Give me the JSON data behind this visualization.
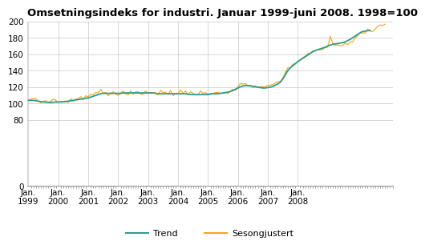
{
  "title": "Omsetningsindeks for industri. Januar 1999-juni 2008. 1998=100",
  "title_fontsize": 9.5,
  "trend_color": "#2E9B8F",
  "seasonal_color": "#F5A623",
  "background_color": "#FFFFFF",
  "grid_color": "#C8C8C8",
  "ylim": [
    0,
    200
  ],
  "yticks": [
    0,
    80,
    100,
    120,
    140,
    160,
    180,
    200
  ],
  "legend_labels": [
    "Trend",
    "Sesongjustert"
  ],
  "trend": [
    104.0,
    104.0,
    104.0,
    103.5,
    103.0,
    102.5,
    102.0,
    101.8,
    101.5,
    101.5,
    101.8,
    102.0,
    102.0,
    102.0,
    102.2,
    102.5,
    103.0,
    103.5,
    104.0,
    104.5,
    105.0,
    105.5,
    106.0,
    106.5,
    107.0,
    108.0,
    109.0,
    110.0,
    111.0,
    112.0,
    112.5,
    112.5,
    112.5,
    112.5,
    112.5,
    112.5,
    112.5,
    112.5,
    113.0,
    113.0,
    113.0,
    113.0,
    113.0,
    113.0,
    113.0,
    113.0,
    113.0,
    113.0,
    113.0,
    113.0,
    113.0,
    112.5,
    112.0,
    112.0,
    112.0,
    112.0,
    112.0,
    112.0,
    112.0,
    112.0,
    112.0,
    112.0,
    112.0,
    112.0,
    111.5,
    111.0,
    111.0,
    111.0,
    111.0,
    111.0,
    111.0,
    111.0,
    111.0,
    111.5,
    112.0,
    112.0,
    112.0,
    112.5,
    113.0,
    113.5,
    114.0,
    115.0,
    116.0,
    117.5,
    119.0,
    120.5,
    121.5,
    122.0,
    122.0,
    121.5,
    121.0,
    120.5,
    120.0,
    119.5,
    119.0,
    119.0,
    119.5,
    120.0,
    121.0,
    122.5,
    124.0,
    126.0,
    130.0,
    135.0,
    140.0,
    143.5,
    146.0,
    148.5,
    151.0,
    153.0,
    155.0,
    157.0,
    159.0,
    161.0,
    163.0,
    164.5,
    165.5,
    166.5,
    167.5,
    168.5,
    170.0,
    171.0,
    172.0,
    172.5,
    173.0,
    173.5,
    174.0,
    175.0,
    176.5,
    178.0,
    180.0,
    182.0,
    184.0,
    186.0,
    187.5,
    188.0,
    188.5,
    189.0
  ],
  "seasonal": [
    104.0,
    105.5,
    106.5,
    106.0,
    103.0,
    101.0,
    103.0,
    103.5,
    101.0,
    103.0,
    105.5,
    104.0,
    101.5,
    103.0,
    102.0,
    103.5,
    101.5,
    106.0,
    103.0,
    105.5,
    106.0,
    108.5,
    104.5,
    109.5,
    108.5,
    111.5,
    110.5,
    113.5,
    113.0,
    117.5,
    112.5,
    113.5,
    109.5,
    112.5,
    114.5,
    111.5,
    110.0,
    113.0,
    115.5,
    112.0,
    110.5,
    115.5,
    111.5,
    114.5,
    114.5,
    111.5,
    111.5,
    115.5,
    112.5,
    113.5,
    113.5,
    113.0,
    110.5,
    116.0,
    113.5,
    114.0,
    111.0,
    116.0,
    109.5,
    112.5,
    112.5,
    116.5,
    112.5,
    115.5,
    110.5,
    114.5,
    112.5,
    110.5,
    110.5,
    115.5,
    112.5,
    113.5,
    111.5,
    112.5,
    112.5,
    113.5,
    113.5,
    112.5,
    112.5,
    113.5,
    112.5,
    114.5,
    117.5,
    116.0,
    120.5,
    124.5,
    123.5,
    124.5,
    121.5,
    122.5,
    119.5,
    121.5,
    119.5,
    120.5,
    120.5,
    120.5,
    122.0,
    122.5,
    123.0,
    125.5,
    126.5,
    127.0,
    131.0,
    138.0,
    143.5,
    143.5,
    148.0,
    148.5,
    151.0,
    153.0,
    156.0,
    157.5,
    161.0,
    161.0,
    164.0,
    164.0,
    165.5,
    165.0,
    166.0,
    168.0,
    168.5,
    181.5,
    173.5,
    170.5,
    171.5,
    170.0,
    170.5,
    173.5,
    171.5,
    175.0,
    175.0,
    180.0,
    182.5,
    186.0,
    186.0,
    185.5,
    190.5,
    188.0,
    187.5,
    190.5,
    193.5,
    195.5,
    194.5,
    196.5
  ]
}
